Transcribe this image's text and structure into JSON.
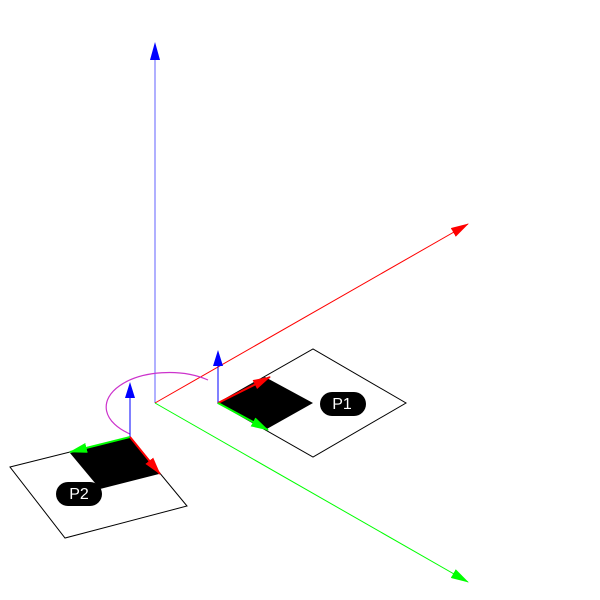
{
  "planes": [
    {
      "label": "P1"
    },
    {
      "label": "P2"
    }
  ]
}
